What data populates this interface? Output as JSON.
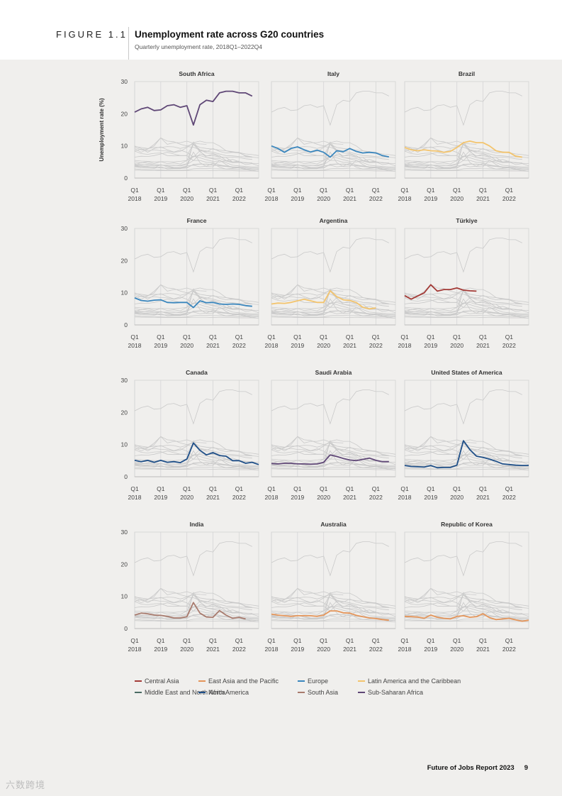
{
  "figure": {
    "label": "FIGURE 1.1",
    "title": "Unemployment rate across G20 countries",
    "subtitle": "Quarterly unemployment rate, 2018Q1–2022Q4"
  },
  "footer": {
    "report": "Future of Jobs Report 2023",
    "page": "9"
  },
  "watermark": "六数跨境",
  "chart_data": {
    "type": "line",
    "layout": "small-multiples",
    "ylabel": "Unemployment rate (%)",
    "ylim": [
      0,
      30
    ],
    "yticks": [
      0,
      10,
      20,
      30
    ],
    "x_ticks": [
      {
        "q": 0,
        "label": [
          "Q1",
          "2018"
        ]
      },
      {
        "q": 4,
        "label": [
          "Q1",
          "2019"
        ]
      },
      {
        "q": 8,
        "label": [
          "Q1",
          "2020"
        ]
      },
      {
        "q": 12,
        "label": [
          "Q1",
          "2021"
        ]
      },
      {
        "q": 16,
        "label": [
          "Q1",
          "2022"
        ]
      }
    ],
    "background_color": "#c9c9c9",
    "regions": [
      {
        "name": "Central Asia",
        "color": "#a33a36"
      },
      {
        "name": "East Asia and the Pacific",
        "color": "#e4955a"
      },
      {
        "name": "Europe",
        "color": "#3a86bd"
      },
      {
        "name": "Latin America and the Caribbean",
        "color": "#f3c46d"
      },
      {
        "name": "Middle East and North Africa",
        "color": "#4a6b63"
      },
      {
        "name": "North America",
        "color": "#1f4f88"
      },
      {
        "name": "South Asia",
        "color": "#a87b6e"
      },
      {
        "name": "Sub-Saharan Africa",
        "color": "#5f4776"
      }
    ],
    "panels": [
      {
        "title": "South Africa",
        "region": "Sub-Saharan Africa",
        "color": "#5f4776",
        "values": [
          20.5,
          21.5,
          22,
          21,
          21.2,
          22.5,
          22.8,
          22,
          22.5,
          16.5,
          22.8,
          24.2,
          23.8,
          26.5,
          27,
          27,
          26.5,
          26.5,
          25.5
        ]
      },
      {
        "title": "Italy",
        "region": "Europe",
        "color": "#3a86bd",
        "values": [
          10,
          9.2,
          8,
          9.2,
          9.7,
          8.8,
          8.1,
          8.7,
          8,
          6.5,
          8.5,
          8.2,
          9.2,
          8.3,
          7.8,
          8,
          7.8,
          7,
          6.6
        ]
      },
      {
        "title": "Brazil",
        "region": "Latin America and the Caribbean",
        "color": "#f3c46d",
        "values": [
          9.5,
          8.8,
          8.5,
          8.8,
          8.5,
          8.4,
          8,
          8.3,
          9.5,
          11,
          11.5,
          11,
          11,
          10,
          8.5,
          8,
          8,
          6.8,
          6.5
        ]
      },
      {
        "title": "France",
        "region": "Europe",
        "color": "#3a86bd",
        "values": [
          8.4,
          7.6,
          7.4,
          7.7,
          7.8,
          7,
          6.9,
          7,
          7,
          5.4,
          7.5,
          6.9,
          7,
          6.5,
          6.4,
          6.5,
          6.4,
          6,
          5.8
        ]
      },
      {
        "title": "Argentina",
        "region": "Latin America and the Caribbean",
        "color": "#f3c46d",
        "values": [
          6.5,
          6.8,
          6.7,
          7,
          7.5,
          8,
          7.5,
          7,
          7,
          10.6,
          8.8,
          7.8,
          7.6,
          7,
          5.5,
          5,
          5.3
        ]
      },
      {
        "title": "Türkiye",
        "region": "Central Asia",
        "color": "#a33a36",
        "values": [
          9.1,
          8,
          9,
          10,
          12.5,
          10.5,
          11,
          11,
          11.5,
          10.8,
          10.6,
          10.5
        ]
      },
      {
        "title": "Canada",
        "region": "North America",
        "color": "#1f4f88",
        "values": [
          5.1,
          4.7,
          5.1,
          4.5,
          5.1,
          4.5,
          4.7,
          4.4,
          5.5,
          10.5,
          8.2,
          6.8,
          7.5,
          6.6,
          6.4,
          5,
          5,
          4.2,
          4.5,
          3.8
        ]
      },
      {
        "title": "Saudi Arabia",
        "region": "Middle East and North Africa",
        "color": "#5f4776",
        "values": [
          4.1,
          4,
          4.2,
          4.2,
          4,
          4,
          3.9,
          4,
          4.5,
          6.8,
          6.3,
          5.7,
          5.2,
          5,
          5.4,
          5.8,
          5.1,
          4.7,
          4.7
        ]
      },
      {
        "title": "United States of America",
        "region": "North America",
        "color": "#1f4f88",
        "values": [
          3.5,
          3.2,
          3.1,
          3,
          3.5,
          2.8,
          2.9,
          2.9,
          3.6,
          11.2,
          8.4,
          6.4,
          6,
          5.5,
          4.8,
          4,
          3.8,
          3.6,
          3.5,
          3.5
        ]
      },
      {
        "title": "India",
        "region": "South Asia",
        "color": "#a87b6e",
        "values": [
          4.2,
          4.8,
          4.6,
          4.2,
          4.1,
          3.8,
          3.3,
          3.3,
          3.7,
          8.1,
          4.8,
          3.6,
          3.5,
          5.6,
          4.2,
          3.2,
          3.5,
          3
        ]
      },
      {
        "title": "Australia",
        "region": "East Asia and the Pacific",
        "color": "#e4955a",
        "values": [
          4.5,
          4.2,
          4,
          3.8,
          4,
          4,
          4,
          3.8,
          4.2,
          5.5,
          5.5,
          4.9,
          4.8,
          4.1,
          3.7,
          3.3,
          3.1,
          2.8,
          2.6
        ]
      },
      {
        "title": "Republic of Korea",
        "region": "East Asia and the Pacific",
        "color": "#e4955a",
        "values": [
          3.8,
          3.7,
          3.6,
          3.2,
          4.2,
          3.5,
          3.2,
          3,
          3.8,
          4,
          3.5,
          3.7,
          4.6,
          3.4,
          2.8,
          3,
          3.2,
          2.7,
          2.3,
          2.6
        ]
      }
    ],
    "background_series": [
      [
        20.5,
        21.5,
        22,
        21,
        21.2,
        22.5,
        22.8,
        22,
        22.5,
        16.5,
        22.8,
        24.2,
        23.8,
        26.5,
        27,
        27,
        26.5,
        26.5,
        25.5
      ],
      [
        10,
        9.2,
        8,
        9.2,
        9.7,
        8.8,
        8.1,
        8.7,
        8,
        6.5,
        8.5,
        8.2,
        9.2,
        8.3,
        7.8,
        8,
        7.8,
        7,
        6.6
      ],
      [
        9.5,
        8.8,
        8.5,
        8.8,
        8.5,
        8.4,
        8,
        8.3,
        9.5,
        11,
        11.5,
        11,
        11,
        10,
        8.5,
        8,
        8,
        6.8,
        6.5
      ],
      [
        8.4,
        7.6,
        7.4,
        7.7,
        7.8,
        7,
        6.9,
        7,
        7,
        5.4,
        7.5,
        6.9,
        7,
        6.5,
        6.4,
        6.5,
        6.4,
        6,
        5.8
      ],
      [
        6.5,
        6.8,
        6.7,
        7,
        7.5,
        8,
        7.5,
        7,
        7,
        10.6,
        8.8,
        7.8,
        7.6,
        7,
        5.5,
        5,
        5.3
      ],
      [
        9.1,
        8,
        9,
        10,
        12.5,
        10.5,
        11,
        11,
        11.5,
        10.8,
        10.6,
        10.5
      ],
      [
        5.1,
        4.7,
        5.1,
        4.5,
        5.1,
        4.5,
        4.7,
        4.4,
        5.5,
        10.5,
        8.2,
        6.8,
        7.5,
        6.6,
        6.4,
        5,
        5,
        4.2,
        4.5,
        3.8
      ],
      [
        4.1,
        4,
        4.2,
        4.2,
        4,
        4,
        3.9,
        4,
        4.5,
        6.8,
        6.3,
        5.7,
        5.2,
        5,
        5.4,
        5.8,
        5.1,
        4.7,
        4.7
      ],
      [
        3.5,
        3.2,
        3.1,
        3,
        3.5,
        2.8,
        2.9,
        2.9,
        3.6,
        11.2,
        8.4,
        6.4,
        6,
        5.5,
        4.8,
        4,
        3.8,
        3.6,
        3.5,
        3.5
      ],
      [
        4.2,
        4.8,
        4.6,
        4.2,
        4.1,
        3.8,
        3.3,
        3.3,
        3.7,
        8.1,
        4.8,
        3.6,
        3.5,
        5.6,
        4.2,
        3.2,
        3.5,
        3
      ],
      [
        4.5,
        4.2,
        4,
        3.8,
        4,
        4,
        4,
        3.8,
        4.2,
        5.5,
        5.5,
        4.9,
        4.8,
        4.1,
        3.7,
        3.3,
        3.1,
        2.8,
        2.6
      ],
      [
        3.8,
        3.7,
        3.6,
        3.2,
        4.2,
        3.5,
        3.2,
        3,
        3.8,
        4,
        3.5,
        3.7,
        4.6,
        3.4,
        2.8,
        3,
        3.2,
        2.7,
        2.3,
        2.6
      ],
      [
        9.8,
        9.5,
        9.2,
        9.5,
        9.5,
        9.8,
        9.7,
        9.2,
        9.8,
        9.6,
        8.8,
        8.4,
        8,
        7.5,
        7,
        6.9,
        6.7,
        6.6,
        6.5,
        6.3
      ],
      [
        8.5,
        9,
        9,
        10.5,
        12.5,
        11.5,
        11.3,
        10.5,
        10,
        10.5,
        9.5,
        9.2,
        9,
        8.7,
        8.5,
        8.2,
        7.9,
        7.5,
        7.3,
        7
      ],
      [
        5.5,
        5.3,
        5.2,
        5,
        5.1,
        5.1,
        5,
        5.2,
        5.5,
        6.8,
        7,
        6.4,
        6.2,
        6.1,
        5.3,
        4.8,
        4.9,
        4.8,
        4.6,
        4.5
      ],
      [
        4,
        3.7,
        3.5,
        3.4,
        3.2,
        3.1,
        3,
        3,
        3.1,
        4.3,
        4.4,
        4.3,
        4,
        3.9,
        3.8,
        3.5,
        3.4,
        3.3,
        3.2,
        3.1
      ],
      [
        3.6,
        3.5,
        3.4,
        3.3,
        3.1,
        3.1,
        3.1,
        3.2,
        3.3,
        4.1,
        4.3,
        4.4,
        4.1,
        3.8,
        3.6,
        3.4,
        3.2,
        3.1,
        2.9,
        2.9
      ],
      [
        2.9,
        2.7,
        2.6,
        2.5,
        2.5,
        2.4,
        2.4,
        2.4,
        2.5,
        2.9,
        3,
        3,
        2.9,
        2.9,
        2.8,
        2.7,
        2.6,
        2.6,
        2.6,
        2.5
      ],
      [
        2.5,
        2.4,
        2.4,
        2.4,
        2.3,
        2.3,
        2.3,
        2.3,
        2.3,
        2.4,
        2.4,
        2.4,
        2.3,
        2.4,
        2.3,
        2.3,
        2.2,
        2.2,
        2.2,
        2.1
      ]
    ]
  }
}
